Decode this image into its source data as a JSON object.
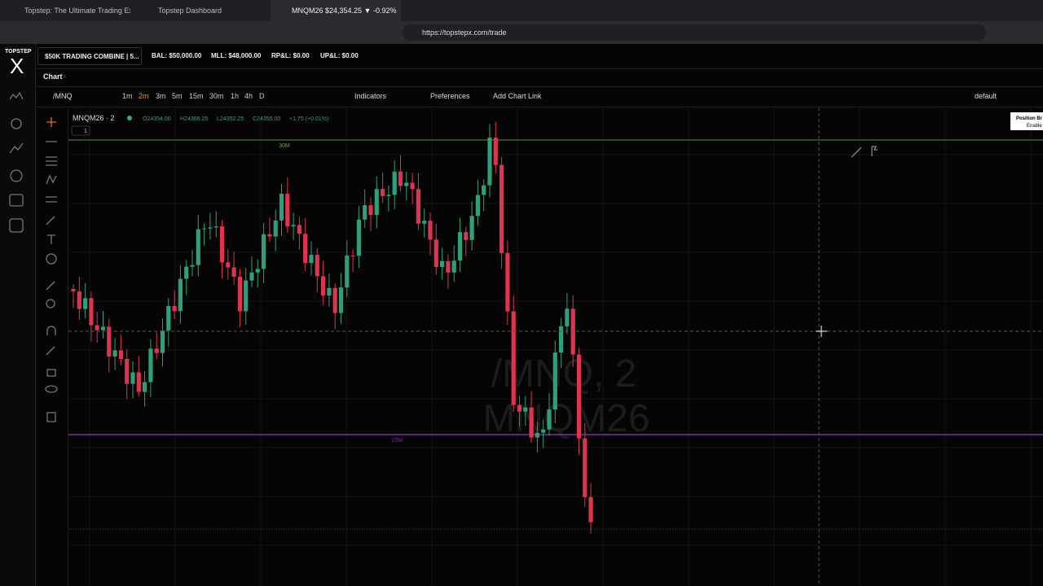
{
  "browser": {
    "tabs": [
      "Topstep: The Ultimate Trading Experi",
      "Topstep Dashboard",
      "MNQM26 $24,354.25 ▼ -0.92%"
    ],
    "url": "https://topstepx.com/trade"
  },
  "logo": {
    "top": "TOPSTEP",
    "mark": "X"
  },
  "account": {
    "name": "$50K TRADING COMBINE | 5...",
    "bal": "BAL: $50,000.00",
    "mll": "MLL: $48,000.00",
    "rpl": "RP&L: $0.00",
    "upl": "UP&L: $0.00"
  },
  "panel": {
    "tab": "Chart",
    "close": "x"
  },
  "toolbar": {
    "symbol": "/MNQ",
    "timeframes": [
      "1m",
      "2m",
      "3m",
      "5m",
      "15m",
      "30m",
      "1h",
      "4h",
      "D"
    ],
    "indicators": "Indicators",
    "preferences": "Preferences",
    "link": "Add Chart Link",
    "layout": "default"
  },
  "legend": {
    "title": "MNQM26 · 2",
    "open": "O24354.00",
    "high": "H24366.25",
    "low": "L24352.25",
    "close": "C24355.00",
    "change": "+1.75 (+0.01%)",
    "badge": "1"
  },
  "lines": {
    "upper": "30M",
    "lower": "15M"
  },
  "watermark": {
    "line1": "/MNQ, 2",
    "line2": "MNQM26"
  },
  "side_panel": {
    "title": "Position Br",
    "sub": "Enable"
  }
}
